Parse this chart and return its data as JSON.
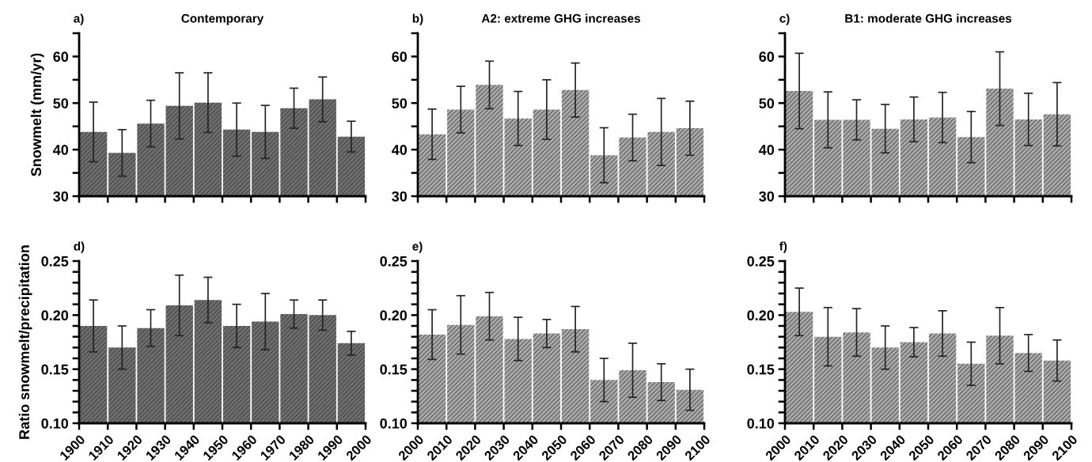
{
  "chart_data": [
    {
      "type": "bar",
      "title": "Contemporary",
      "annotations": [
        "a)"
      ],
      "ylabel": "Snowmelt (mm/yr)",
      "x": [
        1905,
        1915,
        1925,
        1935,
        1945,
        1955,
        1965,
        1975,
        1985,
        1995
      ],
      "xlim": [
        1900,
        2000
      ],
      "xticks": [
        {
          "value": 1900,
          "label": null
        },
        {
          "value": 1910,
          "label": null
        },
        {
          "value": 1920,
          "label": null
        },
        {
          "value": 1930,
          "label": null
        },
        {
          "value": 1940,
          "label": null
        },
        {
          "value": 1950,
          "label": null
        },
        {
          "value": 1960,
          "label": null
        },
        {
          "value": 1970,
          "label": null
        },
        {
          "value": 1980,
          "label": null
        },
        {
          "value": 1990,
          "label": null
        },
        {
          "value": 2000,
          "label": null
        }
      ],
      "ylim": [
        30,
        65
      ],
      "yticks": [
        30,
        {
          "value": 35,
          "label": null
        },
        40,
        {
          "value": 45,
          "label": null
        },
        50,
        {
          "value": 55,
          "label": null
        },
        60,
        {
          "value": 65,
          "label": null
        }
      ],
      "tick_labels": "y",
      "series": [
        {
          "color": "#6e6e6e",
          "values": [
            43.8,
            39.3,
            45.6,
            49.4,
            50.1,
            44.3,
            43.8,
            48.9,
            50.8,
            42.8
          ],
          "errors": [
            6.4,
            5.0,
            5.0,
            7.1,
            6.4,
            5.7,
            5.7,
            4.3,
            4.8,
            3.3
          ]
        }
      ]
    },
    {
      "type": "bar",
      "title": "A2: extreme GHG increases",
      "annotations": [
        "b)"
      ],
      "x": [
        2005,
        2015,
        2025,
        2035,
        2045,
        2055,
        2065,
        2075,
        2085,
        2095
      ],
      "xlim": [
        2000,
        2100
      ],
      "xticks": [
        {
          "value": 2000,
          "label": null
        },
        {
          "value": 2010,
          "label": null
        },
        {
          "value": 2020,
          "label": null
        },
        {
          "value": 2030,
          "label": null
        },
        {
          "value": 2040,
          "label": null
        },
        {
          "value": 2050,
          "label": null
        },
        {
          "value": 2060,
          "label": null
        },
        {
          "value": 2070,
          "label": null
        },
        {
          "value": 2080,
          "label": null
        },
        {
          "value": 2090,
          "label": null
        },
        {
          "value": 2100,
          "label": null
        }
      ],
      "ylim": [
        30,
        65
      ],
      "yticks": [
        30,
        {
          "value": 35,
          "label": null
        },
        40,
        {
          "value": 45,
          "label": null
        },
        50,
        {
          "value": 55,
          "label": null
        },
        60,
        {
          "value": 65,
          "label": null
        }
      ],
      "tick_labels": "y",
      "series": [
        {
          "color": "#a8a8a8",
          "values": [
            43.3,
            48.6,
            53.9,
            46.7,
            48.6,
            52.8,
            38.8,
            42.6,
            43.8,
            44.6
          ],
          "errors": [
            5.4,
            5.0,
            5.1,
            5.8,
            6.4,
            5.8,
            5.9,
            5.0,
            7.2,
            5.8
          ]
        }
      ]
    },
    {
      "type": "bar",
      "title": "B1: moderate GHG increases",
      "annotations": [
        "c)"
      ],
      "x": [
        2005,
        2015,
        2025,
        2035,
        2045,
        2055,
        2065,
        2075,
        2085,
        2095
      ],
      "xlim": [
        2000,
        2100
      ],
      "xticks": [
        {
          "value": 2000,
          "label": null
        },
        {
          "value": 2010,
          "label": null
        },
        {
          "value": 2020,
          "label": null
        },
        {
          "value": 2030,
          "label": null
        },
        {
          "value": 2040,
          "label": null
        },
        {
          "value": 2050,
          "label": null
        },
        {
          "value": 2060,
          "label": null
        },
        {
          "value": 2070,
          "label": null
        },
        {
          "value": 2080,
          "label": null
        },
        {
          "value": 2090,
          "label": null
        },
        {
          "value": 2100,
          "label": null
        }
      ],
      "ylim": [
        30,
        65
      ],
      "yticks": [
        30,
        {
          "value": 35,
          "label": null
        },
        40,
        {
          "value": 45,
          "label": null
        },
        50,
        {
          "value": 55,
          "label": null
        },
        60,
        {
          "value": 65,
          "label": null
        }
      ],
      "tick_labels": "y",
      "series": [
        {
          "color": "#a8a8a8",
          "values": [
            52.6,
            46.4,
            46.4,
            44.5,
            46.5,
            46.9,
            42.7,
            53.1,
            46.5,
            47.6
          ],
          "errors": [
            8.1,
            6.0,
            4.3,
            5.2,
            4.8,
            5.4,
            5.5,
            7.9,
            5.6,
            6.8
          ]
        }
      ]
    },
    {
      "type": "bar",
      "annotations": [
        "d)"
      ],
      "ylabel": "Ratio snowmelt/precipitation",
      "x": [
        1905,
        1915,
        1925,
        1935,
        1945,
        1955,
        1965,
        1975,
        1985,
        1995
      ],
      "xlim": [
        1900,
        2000
      ],
      "xticks": [
        1900,
        1910,
        1920,
        1930,
        1940,
        1950,
        1960,
        1970,
        1980,
        1990,
        2000
      ],
      "ylim": [
        0.1,
        0.25
      ],
      "yticks": [
        {
          "value": 0.1,
          "label": "0.10"
        },
        {
          "value": 0.11,
          "label": null
        },
        {
          "value": 0.12,
          "label": null
        },
        {
          "value": 0.13,
          "label": null
        },
        {
          "value": 0.14,
          "label": null
        },
        {
          "value": 0.15,
          "label": "0.15"
        },
        {
          "value": 0.16,
          "label": null
        },
        {
          "value": 0.17,
          "label": null
        },
        {
          "value": 0.18,
          "label": null
        },
        {
          "value": 0.19,
          "label": null
        },
        {
          "value": 0.2,
          "label": "0.20"
        },
        {
          "value": 0.21,
          "label": null
        },
        {
          "value": 0.22,
          "label": null
        },
        {
          "value": 0.23,
          "label": null
        },
        {
          "value": 0.24,
          "label": null
        },
        {
          "value": 0.25,
          "label": "0.25"
        }
      ],
      "series": [
        {
          "color": "#6e6e6e",
          "values": [
            0.19,
            0.17,
            0.188,
            0.209,
            0.214,
            0.19,
            0.194,
            0.201,
            0.2,
            0.174
          ],
          "errors": [
            0.024,
            0.02,
            0.017,
            0.028,
            0.021,
            0.02,
            0.026,
            0.013,
            0.014,
            0.011
          ]
        }
      ]
    },
    {
      "type": "bar",
      "annotations": [
        "e)"
      ],
      "x": [
        2005,
        2015,
        2025,
        2035,
        2045,
        2055,
        2065,
        2075,
        2085,
        2095
      ],
      "xlim": [
        2000,
        2100
      ],
      "xticks": [
        2000,
        2010,
        2020,
        2030,
        2040,
        2050,
        2060,
        2070,
        2080,
        2090,
        2100
      ],
      "ylim": [
        0.1,
        0.25
      ],
      "yticks": [
        {
          "value": 0.1,
          "label": "0.10"
        },
        {
          "value": 0.11,
          "label": null
        },
        {
          "value": 0.12,
          "label": null
        },
        {
          "value": 0.13,
          "label": null
        },
        {
          "value": 0.14,
          "label": null
        },
        {
          "value": 0.15,
          "label": "0.15"
        },
        {
          "value": 0.16,
          "label": null
        },
        {
          "value": 0.17,
          "label": null
        },
        {
          "value": 0.18,
          "label": null
        },
        {
          "value": 0.19,
          "label": null
        },
        {
          "value": 0.2,
          "label": "0.20"
        },
        {
          "value": 0.21,
          "label": null
        },
        {
          "value": 0.22,
          "label": null
        },
        {
          "value": 0.23,
          "label": null
        },
        {
          "value": 0.24,
          "label": null
        },
        {
          "value": 0.25,
          "label": "0.25"
        }
      ],
      "series": [
        {
          "color": "#a8a8a8",
          "values": [
            0.182,
            0.191,
            0.199,
            0.178,
            0.183,
            0.187,
            0.14,
            0.149,
            0.138,
            0.131
          ],
          "errors": [
            0.023,
            0.027,
            0.022,
            0.02,
            0.013,
            0.021,
            0.02,
            0.025,
            0.017,
            0.019
          ]
        }
      ]
    },
    {
      "type": "bar",
      "annotations": [
        "f)"
      ],
      "x": [
        2005,
        2015,
        2025,
        2035,
        2045,
        2055,
        2065,
        2075,
        2085,
        2095
      ],
      "xlim": [
        2000,
        2100
      ],
      "xticks": [
        2000,
        2010,
        2020,
        2030,
        2040,
        2050,
        2060,
        2070,
        2080,
        2090,
        2100
      ],
      "ylim": [
        0.1,
        0.25
      ],
      "yticks": [
        {
          "value": 0.1,
          "label": "0.10"
        },
        {
          "value": 0.11,
          "label": null
        },
        {
          "value": 0.12,
          "label": null
        },
        {
          "value": 0.13,
          "label": null
        },
        {
          "value": 0.14,
          "label": null
        },
        {
          "value": 0.15,
          "label": "0.15"
        },
        {
          "value": 0.16,
          "label": null
        },
        {
          "value": 0.17,
          "label": null
        },
        {
          "value": 0.18,
          "label": null
        },
        {
          "value": 0.19,
          "label": null
        },
        {
          "value": 0.2,
          "label": "0.20"
        },
        {
          "value": 0.21,
          "label": null
        },
        {
          "value": 0.22,
          "label": null
        },
        {
          "value": 0.23,
          "label": null
        },
        {
          "value": 0.24,
          "label": null
        },
        {
          "value": 0.25,
          "label": "0.25"
        }
      ],
      "series": [
        {
          "color": "#a8a8a8",
          "values": [
            0.203,
            0.18,
            0.184,
            0.17,
            0.175,
            0.183,
            0.155,
            0.181,
            0.165,
            0.158
          ],
          "errors": [
            0.022,
            0.027,
            0.022,
            0.02,
            0.0135,
            0.021,
            0.02,
            0.026,
            0.017,
            0.019
          ]
        }
      ]
    }
  ]
}
